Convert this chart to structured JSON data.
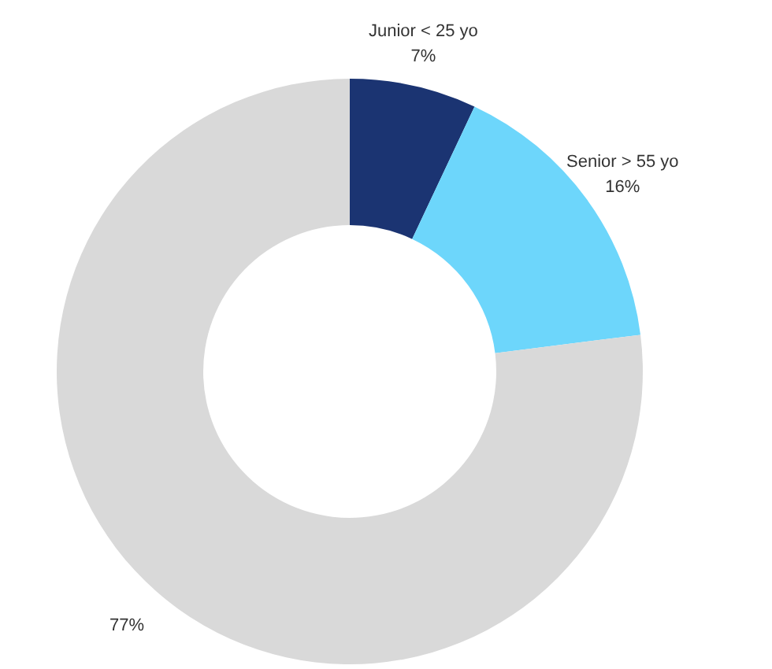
{
  "chart_data": {
    "type": "donut",
    "categories": [
      "Junior < 25 yo",
      "Senior > 55 yo",
      null
    ],
    "values": [
      7,
      16,
      77
    ],
    "colors": [
      "#1b3472",
      "#6dd6fb",
      "#d9d9d9"
    ],
    "value_labels": [
      "7%",
      "16%",
      "77%"
    ]
  }
}
